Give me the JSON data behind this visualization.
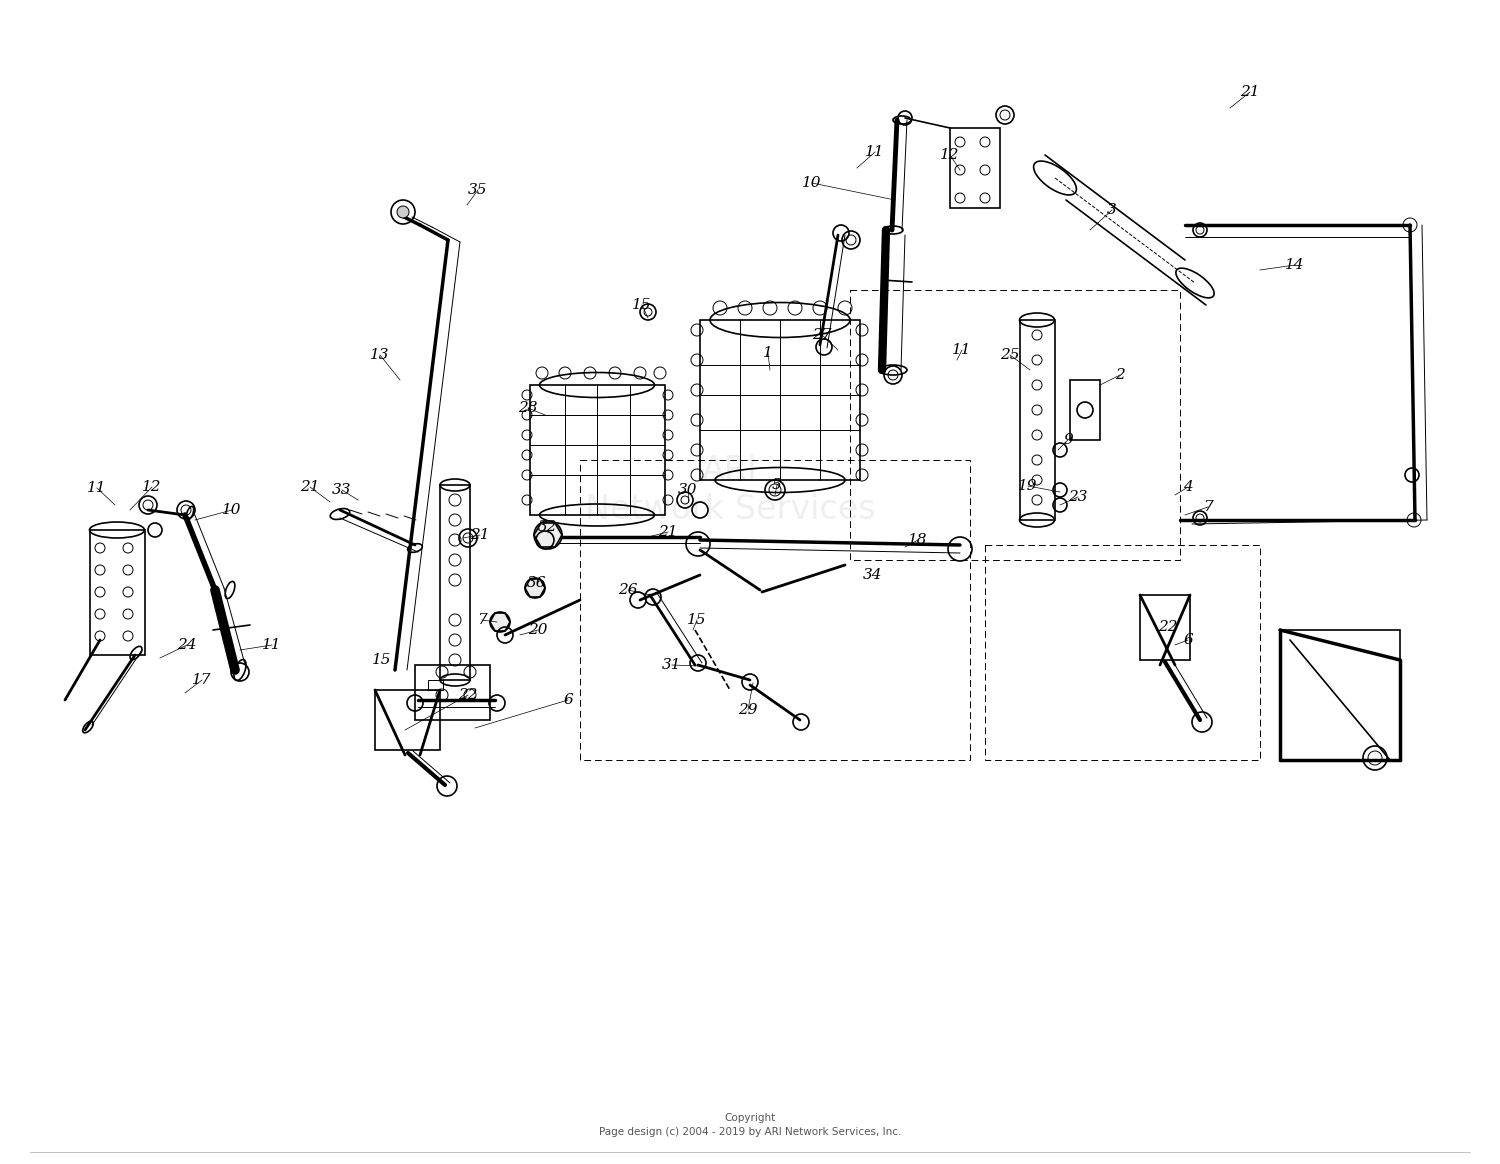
{
  "background_color": "#ffffff",
  "copyright_text": "Copyright\nPage design (c) 2004 - 2019 by ARI Network Services, Inc.",
  "watermark_text": "ARI\nNetwork Services",
  "fig_width": 15.0,
  "fig_height": 11.64,
  "dpi": 100,
  "labels": [
    [
      "21",
      1240,
      95
    ],
    [
      "11",
      870,
      155
    ],
    [
      "10",
      810,
      185
    ],
    [
      "12",
      940,
      160
    ],
    [
      "3",
      1110,
      215
    ],
    [
      "14",
      1290,
      270
    ],
    [
      "27",
      820,
      340
    ],
    [
      "1",
      770,
      360
    ],
    [
      "25",
      1010,
      360
    ],
    [
      "2",
      1120,
      380
    ],
    [
      "15",
      640,
      310
    ],
    [
      "28",
      530,
      415
    ],
    [
      "35",
      475,
      195
    ],
    [
      "13",
      380,
      360
    ],
    [
      "33",
      340,
      495
    ],
    [
      "21",
      310,
      490
    ],
    [
      "10",
      235,
      515
    ],
    [
      "12",
      155,
      490
    ],
    [
      "11",
      100,
      490
    ],
    [
      "21",
      480,
      540
    ],
    [
      "21",
      670,
      535
    ],
    [
      "32",
      545,
      530
    ],
    [
      "36",
      535,
      590
    ],
    [
      "5",
      775,
      490
    ],
    [
      "30",
      685,
      495
    ],
    [
      "9",
      1065,
      445
    ],
    [
      "19",
      1025,
      490
    ],
    [
      "23",
      1075,
      500
    ],
    [
      "7",
      1205,
      510
    ],
    [
      "18",
      915,
      545
    ],
    [
      "4",
      1185,
      490
    ],
    [
      "34",
      870,
      580
    ],
    [
      "15",
      695,
      625
    ],
    [
      "15",
      380,
      665
    ],
    [
      "26",
      625,
      595
    ],
    [
      "31",
      670,
      670
    ],
    [
      "29",
      745,
      715
    ],
    [
      "20",
      535,
      635
    ],
    [
      "7",
      480,
      625
    ],
    [
      "22",
      465,
      700
    ],
    [
      "6",
      565,
      705
    ],
    [
      "11",
      960,
      355
    ],
    [
      "11",
      270,
      650
    ],
    [
      "17",
      200,
      685
    ],
    [
      "24",
      185,
      650
    ],
    [
      "6",
      1185,
      645
    ],
    [
      "22",
      1165,
      630
    ]
  ]
}
